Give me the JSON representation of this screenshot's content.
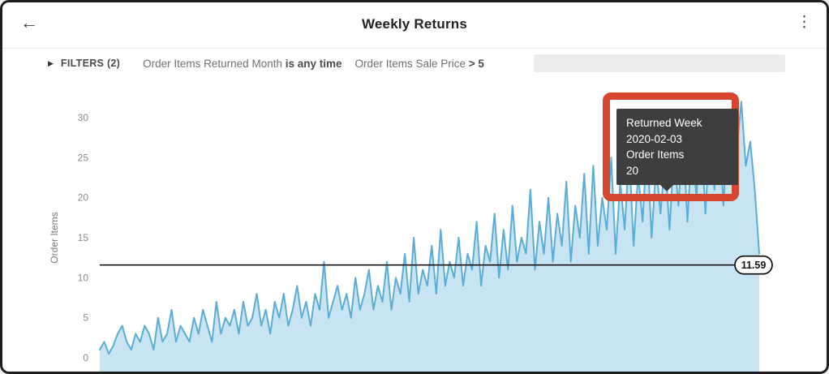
{
  "header": {
    "title": "Weekly Returns",
    "back_icon": "←",
    "menu_icon": "⋮"
  },
  "filters": {
    "toggle_icon": "▶",
    "label": "FILTERS (2)",
    "items": [
      {
        "field": "Order Items Returned Month",
        "condition": "is any time"
      },
      {
        "field": "Order Items Sale Price",
        "condition": "> 5"
      }
    ]
  },
  "chart_data": {
    "type": "area",
    "title": "Weekly Returns",
    "xlabel": "",
    "ylabel": "Order Items",
    "x_unit": "returned week",
    "yticks": [
      0,
      5,
      10,
      15,
      20,
      25,
      30
    ],
    "ylim": [
      0,
      33
    ],
    "grid": false,
    "legend": "none",
    "reference_line": {
      "value": 11.59,
      "label": "11.59"
    },
    "values": [
      1,
      2,
      0.5,
      1.5,
      3,
      4,
      2,
      1,
      3,
      2,
      4,
      3,
      1,
      5,
      2,
      3,
      6,
      2,
      4,
      3,
      2,
      5,
      3,
      6,
      4,
      2,
      7,
      3,
      5,
      4,
      6,
      3,
      7,
      4,
      5,
      8,
      4,
      6,
      3,
      7,
      5,
      8,
      4,
      6,
      9,
      5,
      7,
      4,
      8,
      6,
      12,
      5,
      7,
      9,
      6,
      8,
      5,
      10,
      6,
      8,
      11,
      6,
      9,
      7,
      12,
      6,
      10,
      8,
      13,
      7,
      15,
      8,
      11,
      9,
      14,
      8,
      16,
      9,
      12,
      10,
      15,
      9,
      13,
      11,
      17,
      9,
      14,
      12,
      18,
      10,
      16,
      11,
      19,
      12,
      15,
      13,
      21,
      11,
      17,
      13,
      20,
      12,
      18,
      14,
      22,
      12,
      19,
      15,
      23,
      13,
      24,
      14,
      20,
      16,
      25,
      13,
      22,
      16,
      26,
      14,
      23,
      17,
      27,
      15,
      24,
      18,
      25,
      16,
      26,
      19,
      28,
      17,
      27,
      20,
      29,
      18,
      28,
      21,
      30,
      19,
      29,
      22,
      26,
      32,
      24,
      27,
      21,
      13
    ]
  },
  "tooltip": {
    "lines": [
      "Returned Week",
      "2020-02-03",
      "Order Items",
      "20"
    ]
  },
  "colors": {
    "line": "#5aadd4",
    "fill": "#c8e4f2",
    "reference": "#000000",
    "pill_bg": "#ffffff",
    "tooltip_bg": "#3e3e3e",
    "annotation": "#d6452e"
  }
}
